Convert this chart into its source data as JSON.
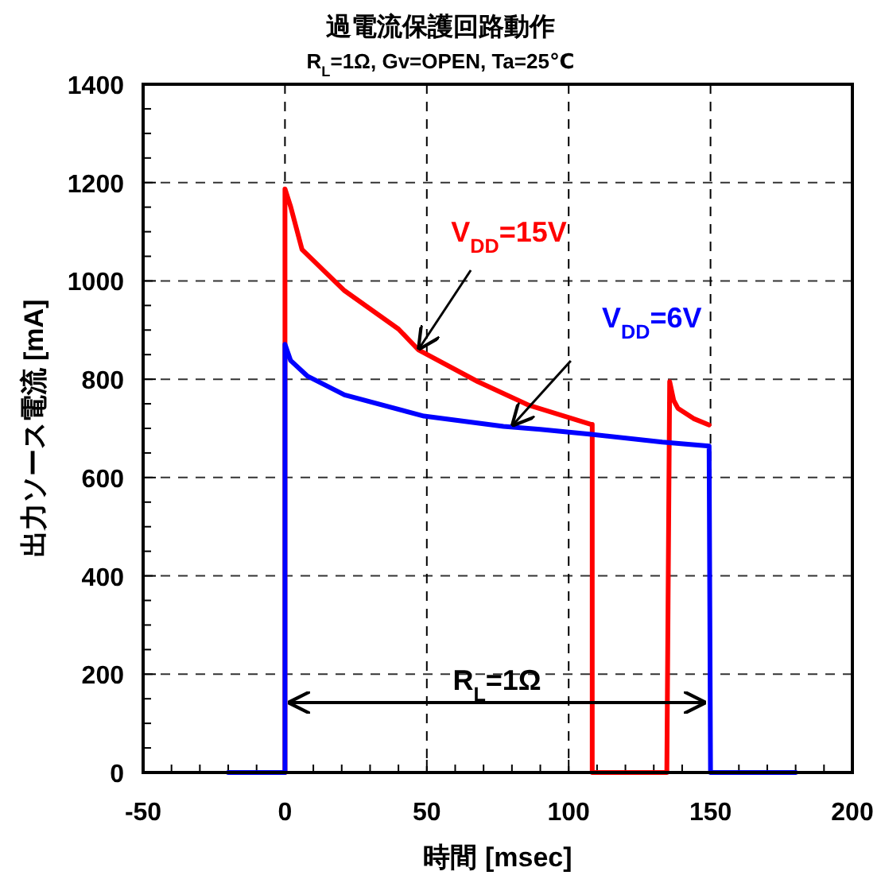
{
  "chart_data": {
    "type": "line",
    "title": "過電流保護回路動作",
    "subtitle": "R$_{L}$=1Ω, Gv=OPEN, Ta=25℃",
    "xlabel": "時間 [msec]",
    "ylabel": "出力ソース電流 [mA]",
    "xlim": [
      -50,
      200
    ],
    "ylim": [
      0,
      1400
    ],
    "xticks": [
      -50,
      0,
      50,
      100,
      150,
      200
    ],
    "yticks": [
      0,
      200,
      400,
      600,
      800,
      1000,
      1200,
      1400
    ],
    "grid": true,
    "series": [
      {
        "color": "#ff0000",
        "x": [
          0,
          0,
          2,
          6,
          21,
          40,
          47,
          68,
          86,
          108,
          108.3,
          108.3,
          134.6,
          135.6,
          137,
          138.5,
          144,
          149.5
        ],
        "values": [
          0,
          1187,
          1151,
          1064,
          980,
          902,
          860,
          795,
          747,
          708,
          708,
          0,
          0,
          795,
          757,
          741,
          720,
          707
        ]
      },
      {
        "color": "#0000ff",
        "x": [
          -20,
          0,
          0,
          2,
          8,
          21,
          49,
          77,
          90,
          108,
          133,
          149.5,
          150,
          180
        ],
        "values": [
          0,
          0,
          871,
          838,
          806,
          768,
          725,
          704,
          698,
          688,
          672,
          664,
          0,
          0
        ]
      }
    ],
    "annotations": [
      {
        "text": "V$_{DD}$=15V",
        "x": 47,
        "y": 860
      },
      {
        "text": "V$_{DD}$=6V",
        "x": 80,
        "y": 705
      },
      "R$_{L}$=1Ω"
    ]
  }
}
